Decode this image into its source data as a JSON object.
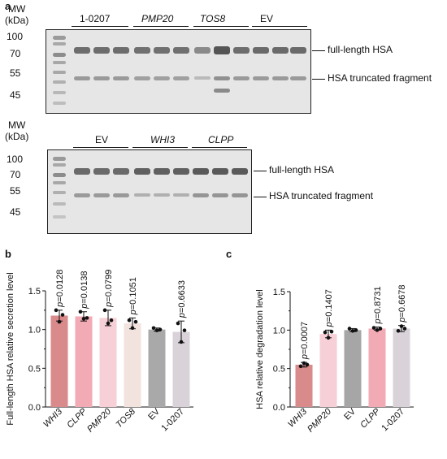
{
  "panel_labels": {
    "a": "a",
    "b": "b",
    "c": "c"
  },
  "gel_a": {
    "mw_header": [
      "MW",
      "(kDa)"
    ],
    "markers": [
      "100",
      "70",
      "55",
      "45"
    ],
    "groups": [
      "1-0207",
      "PMP20",
      "TOS8",
      "EV"
    ],
    "group_italic": [
      false,
      true,
      true,
      false
    ],
    "band_labels": [
      "full-length HSA",
      "HSA truncated fragment"
    ]
  },
  "gel_b": {
    "mw_header": [
      "MW",
      "(kDa)"
    ],
    "markers": [
      "100",
      "70",
      "55",
      "45"
    ],
    "groups": [
      "EV",
      "WHI3",
      "CLPP"
    ],
    "group_italic": [
      false,
      true,
      true
    ],
    "band_labels": [
      "full-length HSA",
      "HSA truncated fragment"
    ]
  },
  "chart_data": [
    {
      "type": "bar",
      "ylabel": "Full-length HSA relative secretion level",
      "ylim": [
        0,
        1.5
      ],
      "yticks": [
        "0.0",
        "0.5",
        "1.0",
        "1.5"
      ],
      "categories": [
        "WHI3",
        "CLPP",
        "PMP20",
        "TOS8",
        "EV",
        "1-0207"
      ],
      "categories_italic": [
        true,
        true,
        true,
        true,
        false,
        false
      ],
      "values": [
        1.18,
        1.17,
        1.15,
        1.08,
        1.0,
        0.97
      ],
      "errors": [
        0.07,
        0.06,
        0.1,
        0.07,
        0.02,
        0.14
      ],
      "points": [
        [
          1.25,
          1.1,
          1.19
        ],
        [
          1.23,
          1.14,
          1.15
        ],
        [
          1.25,
          1.08,
          1.12
        ],
        [
          1.12,
          1.02,
          1.1
        ],
        [
          1.02,
          0.99,
          1.0
        ],
        [
          1.08,
          0.84,
          0.99
        ]
      ],
      "annotations": [
        "p=0.0128",
        "p=0.0138",
        "p=0.0799",
        "p=0.1051",
        "",
        "p=0.6633"
      ],
      "colors": [
        "#d98a8a",
        "#f2aab4",
        "#f7cfd6",
        "#f3e3df",
        "#a9a9a9",
        "#d9d3d9"
      ]
    },
    {
      "type": "bar",
      "ylabel": "HSA  relative degradation level",
      "ylim": [
        0,
        1.5
      ],
      "yticks": [
        "0.0",
        "0.5",
        "1.0",
        "1.5"
      ],
      "categories": [
        "WHI3",
        "PMP20",
        "EV",
        "CLPP",
        "1-0207"
      ],
      "categories_italic": [
        true,
        true,
        false,
        true,
        false
      ],
      "values": [
        0.55,
        0.95,
        1.0,
        1.02,
        1.02
      ],
      "errors": [
        0.03,
        0.05,
        0.02,
        0.02,
        0.04
      ],
      "points": [
        [
          0.53,
          0.57,
          0.55
        ],
        [
          0.97,
          0.9,
          0.98
        ],
        [
          1.02,
          0.99,
          1.0
        ],
        [
          1.03,
          1.0,
          1.02
        ],
        [
          0.99,
          1.05,
          1.02
        ]
      ],
      "annotations": [
        "p=0.0007",
        "p=0.1407",
        "",
        "p=0.8731",
        "p=0.6678"
      ],
      "colors": [
        "#d98a8a",
        "#f7cfd6",
        "#a6a6a6",
        "#f2aab4",
        "#d9d3d9"
      ]
    }
  ]
}
